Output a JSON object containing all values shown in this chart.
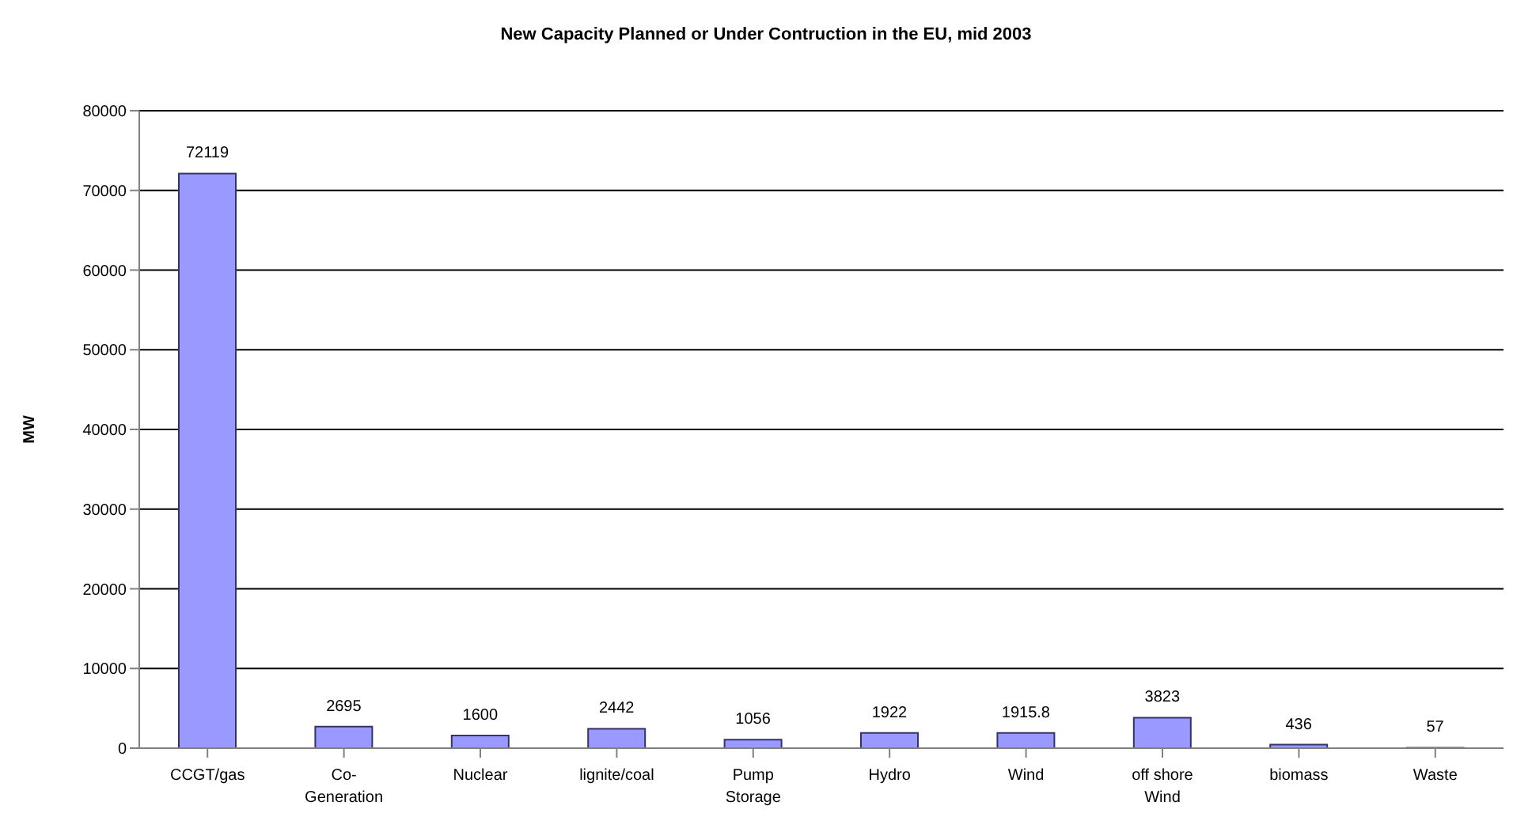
{
  "chart_data": {
    "type": "bar",
    "title": "New Capacity Planned or Under Contruction in the EU, mid 2003",
    "ylabel": "MW",
    "categories": [
      "CCGT/gas",
      "Co-Generation",
      "Nuclear",
      "lignite/coal",
      "Pump Storage",
      "Hydro",
      "Wind",
      "off shore Wind",
      "biomass",
      "Waste"
    ],
    "values": [
      72119,
      2695,
      1600,
      2442,
      1056,
      1922,
      1915.8,
      3823,
      436,
      57
    ],
    "color": "#9999ff",
    "ylim": [
      0,
      80000
    ],
    "yticks": [
      0,
      10000,
      20000,
      30000,
      40000,
      50000,
      60000,
      70000,
      80000
    ],
    "grid": "y",
    "data_labels": true
  }
}
